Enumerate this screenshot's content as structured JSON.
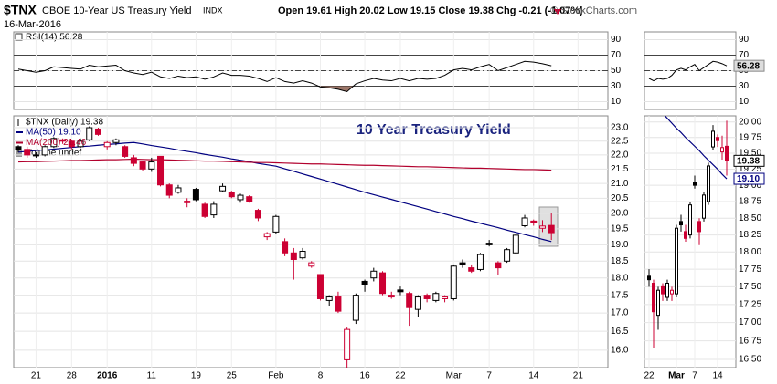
{
  "header": {
    "symbol": "$TNX",
    "name": "CBOE 10-Year US Treasury Yield",
    "exchange": "INDX",
    "date": "16-Mar-2016",
    "quote": "Open 19.61 High 20.02 Low 19.15 Close 19.38 Chg -0.21 (-1.07%)",
    "credit": "© StockCharts.com"
  },
  "chart_data": {
    "type": "candlestick",
    "annotation": "10 Year Treasury Yield",
    "categories": [
      null,
      null,
      "21",
      null,
      null,
      null,
      "28",
      null,
      null,
      null,
      "2016",
      null,
      null,
      null,
      null,
      "11",
      null,
      null,
      null,
      null,
      "19",
      null,
      null,
      null,
      "25",
      null,
      null,
      null,
      null,
      "Feb",
      null,
      null,
      null,
      null,
      "8",
      null,
      null,
      null,
      null,
      "16",
      null,
      null,
      null,
      "22",
      null,
      null,
      null,
      null,
      null,
      "Mar",
      null,
      null,
      null,
      "7",
      null,
      null,
      null,
      null,
      "14",
      null,
      null,
      null,
      null,
      "21"
    ],
    "open": [
      22.3,
      22.2,
      22.0,
      22.0,
      22.3,
      22.55,
      22.5,
      22.3,
      22.55,
      22.95,
      22.3,
      22.45,
      22.3,
      21.9,
      21.75,
      21.5,
      21.95,
      20.95,
      20.7,
      20.4,
      20.8,
      20.3,
      19.95,
      20.75,
      20.7,
      20.45,
      20.55,
      20.1,
      19.25,
      19.4,
      19.1,
      18.75,
      18.6,
      18.35,
      18.1,
      17.35,
      17.45,
      15.75,
      16.8,
      17.9,
      18.0,
      18.15,
      17.45,
      17.65,
      17.55,
      17.1,
      17.5,
      17.35,
      17.4,
      17.4,
      18.45,
      18.3,
      18.25,
      19.05,
      18.45,
      18.5,
      18.75,
      19.6,
      19.75,
      19.52,
      19.61,
      null,
      null,
      null
    ],
    "high": [
      22.35,
      22.3,
      22.1,
      22.35,
      22.65,
      22.6,
      22.55,
      22.6,
      23.05,
      23.0,
      22.5,
      22.6,
      22.35,
      22.0,
      21.8,
      21.9,
      21.95,
      21.0,
      20.95,
      20.5,
      20.85,
      20.35,
      20.4,
      21.0,
      20.75,
      20.65,
      20.6,
      20.15,
      19.4,
      19.95,
      19.2,
      18.9,
      18.9,
      18.5,
      18.1,
      17.5,
      17.6,
      16.6,
      17.55,
      17.95,
      18.3,
      18.2,
      17.6,
      17.75,
      17.6,
      17.5,
      17.55,
      17.6,
      17.5,
      18.4,
      18.55,
      18.4,
      18.75,
      19.15,
      18.5,
      18.9,
      19.35,
      19.95,
      19.8,
      19.78,
      20.02,
      null,
      null,
      null
    ],
    "low": [
      22.1,
      21.9,
      21.9,
      21.95,
      22.25,
      22.4,
      22.2,
      22.25,
      22.5,
      22.7,
      22.2,
      22.35,
      21.9,
      21.6,
      21.45,
      21.4,
      20.9,
      20.5,
      20.65,
      20.2,
      20.4,
      19.85,
      19.85,
      20.7,
      20.5,
      20.35,
      20.35,
      19.75,
      19.15,
      19.35,
      18.65,
      17.95,
      18.55,
      18.3,
      17.35,
      17.2,
      17.0,
      15.55,
      16.7,
      17.6,
      17.9,
      17.5,
      17.4,
      17.5,
      16.65,
      16.9,
      17.3,
      17.3,
      17.3,
      17.35,
      18.3,
      18.15,
      18.2,
      18.95,
      18.1,
      18.45,
      18.7,
      19.55,
      19.6,
      19.4,
      19.15,
      null,
      null,
      null
    ],
    "close": [
      22.2,
      22.0,
      22.0,
      22.3,
      22.6,
      22.5,
      22.3,
      22.5,
      23.0,
      22.75,
      22.45,
      22.55,
      21.95,
      21.7,
      21.5,
      21.75,
      20.95,
      20.6,
      20.85,
      20.35,
      20.45,
      19.9,
      20.3,
      20.9,
      20.55,
      20.6,
      20.4,
      19.85,
      19.35,
      19.9,
      18.75,
      18.55,
      18.8,
      18.45,
      17.4,
      17.45,
      17.05,
      16.55,
      17.5,
      17.8,
      18.2,
      17.55,
      17.5,
      17.6,
      17.15,
      17.45,
      17.4,
      17.55,
      17.45,
      18.35,
      18.4,
      18.2,
      18.7,
      19.0,
      18.3,
      18.85,
      19.3,
      19.85,
      19.7,
      19.59,
      19.38,
      null,
      null,
      null
    ],
    "up_color": "#000000",
    "down_color": "#cc0033",
    "legend": {
      "price": "$TNX (Daily) 19.38",
      "volume": "Volume undef"
    },
    "series": [
      {
        "name": "MA(50) 19.10",
        "color": "#000080",
        "values": [
          22.1,
          22.13,
          22.16,
          22.18,
          22.21,
          22.24,
          22.27,
          22.3,
          22.32,
          22.35,
          22.38,
          22.4,
          22.43,
          22.45,
          22.4,
          22.34,
          22.29,
          22.24,
          22.18,
          22.13,
          22.08,
          22.02,
          21.97,
          21.92,
          21.86,
          21.81,
          21.76,
          21.7,
          21.65,
          21.6,
          21.51,
          21.42,
          21.33,
          21.24,
          21.15,
          21.06,
          20.97,
          20.88,
          20.79,
          20.7,
          20.62,
          20.54,
          20.46,
          20.38,
          20.3,
          20.22,
          20.14,
          20.06,
          19.98,
          19.9,
          19.83,
          19.75,
          19.68,
          19.61,
          19.54,
          19.46,
          19.39,
          19.32,
          19.25,
          19.17,
          19.1,
          null,
          null,
          null
        ]
      },
      {
        "name": "MA(200) 21.46",
        "color": "#b2002d",
        "values": [
          21.75,
          21.76,
          21.76,
          21.77,
          21.78,
          21.79,
          21.8,
          21.8,
          21.81,
          21.82,
          21.83,
          21.83,
          21.84,
          21.85,
          21.84,
          21.83,
          21.83,
          21.82,
          21.81,
          21.8,
          21.79,
          21.78,
          21.78,
          21.77,
          21.76,
          21.75,
          21.74,
          21.73,
          21.73,
          21.72,
          21.71,
          21.7,
          21.69,
          21.68,
          21.68,
          21.67,
          21.66,
          21.65,
          21.64,
          21.63,
          21.63,
          21.62,
          21.61,
          21.6,
          21.59,
          21.58,
          21.58,
          21.57,
          21.56,
          21.55,
          21.54,
          21.53,
          21.53,
          21.52,
          21.51,
          21.5,
          21.49,
          21.48,
          21.48,
          21.47,
          21.46,
          null,
          null,
          null
        ]
      }
    ],
    "ylim": [
      15.55,
      23.45
    ],
    "log_scale": true,
    "grid": true,
    "yticks": [
      {
        "value": 16,
        "label": "16.0"
      },
      {
        "value": 16.5,
        "label": "16.5"
      },
      {
        "value": 17,
        "label": "17.0"
      },
      {
        "value": 17.5,
        "label": "17.5"
      },
      {
        "value": 18,
        "label": "18.0"
      },
      {
        "value": 18.5,
        "label": "18.5"
      },
      {
        "value": 19,
        "label": "19.0"
      },
      {
        "value": 19.5,
        "label": "19.5"
      },
      {
        "value": 20,
        "label": "20.0"
      },
      {
        "value": 20.5,
        "label": "20.5"
      },
      {
        "value": 21,
        "label": "21.0"
      },
      {
        "value": 21.5,
        "label": "21.5"
      },
      {
        "value": 22,
        "label": "22.0"
      },
      {
        "value": 22.5,
        "label": "22.5"
      },
      {
        "value": 23,
        "label": "23.0"
      }
    ],
    "rsi": {
      "name": "RSI(14) 56.28",
      "color": "#000000",
      "shade_color": "#8b5e4f",
      "values": [
        52,
        50,
        48,
        50,
        55,
        54,
        53,
        52,
        57,
        55,
        56,
        57,
        50,
        47,
        45,
        48,
        42,
        40,
        43,
        41,
        42,
        39,
        42,
        47,
        44,
        44,
        43,
        40,
        36,
        41,
        36,
        34,
        37,
        34,
        29,
        28,
        26,
        23,
        33,
        37,
        40,
        38,
        37,
        40,
        37,
        40,
        39,
        40,
        44,
        51,
        53,
        51,
        55,
        58,
        50,
        54,
        58,
        62,
        61,
        59,
        56.28,
        null,
        null,
        null
      ],
      "ylim": [
        0,
        100
      ],
      "yticks": [
        10,
        30,
        50,
        70,
        90
      ],
      "overbought": 70,
      "oversold": 30,
      "midline": 50
    },
    "zoom": {
      "categories": [
        "22",
        null,
        null,
        null,
        null,
        null,
        "Mar",
        null,
        null,
        null,
        "7",
        null,
        null,
        null,
        null,
        "14",
        null,
        null
      ],
      "ylim": [
        16.39,
        20.1
      ],
      "yticks": [
        {
          "value": 16.5,
          "label": "16.50"
        },
        {
          "value": 16.75,
          "label": "16.75"
        },
        {
          "value": 17,
          "label": "17.00"
        },
        {
          "value": 17.25,
          "label": "17.25"
        },
        {
          "value": 17.5,
          "label": "17.50"
        },
        {
          "value": 17.75,
          "label": "17.75"
        },
        {
          "value": 18,
          "label": "18.00"
        },
        {
          "value": 18.25,
          "label": "18.25"
        },
        {
          "value": 18.5,
          "label": "18.50"
        },
        {
          "value": 18.75,
          "label": "18.75"
        },
        {
          "value": 19,
          "label": "19.00"
        },
        {
          "value": 19.25,
          "label": "19.25"
        },
        {
          "value": 19.5,
          "label": "19.50"
        },
        {
          "value": 19.75,
          "label": "19.75"
        },
        {
          "value": 20,
          "label": "20.00"
        }
      ],
      "ma_tag": "19.10"
    }
  }
}
